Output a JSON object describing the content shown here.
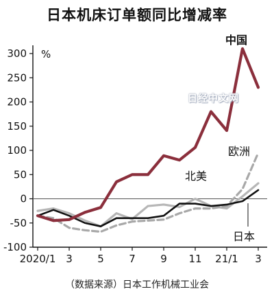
{
  "title": "日本机床订单额同比增减率",
  "source": "（数据来源）日本工作机械工业会",
  "watermark": "日经中文网",
  "colors": {
    "china": "#8b2f3c",
    "europe": "#a8a8a8",
    "usa": "#b6b6b6",
    "japan": "#111111",
    "axis": "#111111",
    "zero_line": "#555555"
  },
  "chart_data": {
    "type": "line",
    "yunit": "%",
    "ylim": [
      -100,
      300
    ],
    "yticks": [
      -100,
      -50,
      0,
      50,
      100,
      150,
      200,
      250,
      300
    ],
    "xticks": [
      {
        "index": 0,
        "label": "2020/1"
      },
      {
        "index": 2,
        "label": "3"
      },
      {
        "index": 4,
        "label": "5"
      },
      {
        "index": 6,
        "label": "7"
      },
      {
        "index": 8,
        "label": "9"
      },
      {
        "index": 10,
        "label": "11"
      },
      {
        "index": 12,
        "label": "21/1"
      },
      {
        "index": 14,
        "label": "3"
      }
    ],
    "x": [
      "2020/1",
      "2020/2",
      "2020/3",
      "2020/4",
      "2020/5",
      "2020/6",
      "2020/7",
      "2020/8",
      "2020/9",
      "2020/10",
      "2020/11",
      "2020/12",
      "2021/1",
      "2021/2",
      "2021/3"
    ],
    "series": [
      {
        "name": "中国",
        "key": "china",
        "values": [
          -35,
          -45,
          -43,
          -28,
          -18,
          35,
          50,
          50,
          89,
          80,
          106,
          180,
          141,
          310,
          230
        ]
      },
      {
        "name": "欧洲",
        "key": "europe",
        "values": [
          -35,
          -40,
          -60,
          -65,
          -68,
          -55,
          -47,
          -45,
          -43,
          -30,
          -20,
          -20,
          -15,
          20,
          95
        ]
      },
      {
        "name": "北美",
        "key": "usa",
        "values": [
          -25,
          -20,
          -30,
          -45,
          -57,
          -30,
          -42,
          -15,
          -12,
          -17,
          0,
          -15,
          -20,
          5,
          32
        ]
      },
      {
        "name": "日本",
        "key": "japan",
        "values": [
          -35,
          -23,
          -35,
          -50,
          -57,
          -40,
          -40,
          -40,
          -35,
          -10,
          -10,
          -15,
          -12,
          -5,
          18
        ]
      }
    ],
    "grid": false,
    "legend": "inline labels"
  }
}
